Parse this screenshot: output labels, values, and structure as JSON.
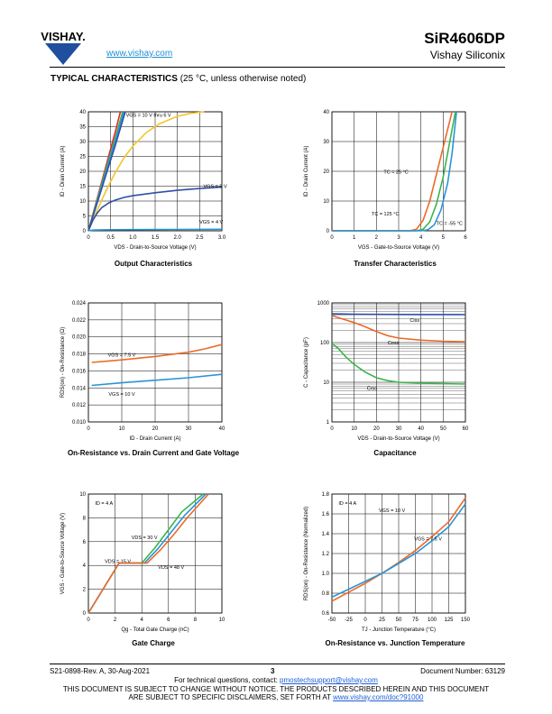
{
  "header": {
    "logo_text": "VISHAY.",
    "url": "www.vishay.com",
    "part_number": "SiR4606DP",
    "company": "Vishay Siliconix"
  },
  "section": {
    "title_bold": "TYPICAL CHARACTERISTICS",
    "title_rest": " (25 °C, unless otherwise noted)"
  },
  "footer": {
    "revision": "S21-0898-Rev. A, 30-Aug-2021",
    "page": "3",
    "doc_number": "Document Number: 63129",
    "questions": "For technical questions, contact: ",
    "email": "pmostechsupport@vishay.com",
    "notice1": "THIS DOCUMENT IS SUBJECT TO CHANGE WITHOUT NOTICE. THE PRODUCTS DESCRIBED HEREIN AND THIS DOCUMENT",
    "notice2": "ARE SUBJECT TO SPECIFIC DISCLAIMERS, SET FORTH AT ",
    "disclaimer_url": "www.vishay.com/doc?91000"
  },
  "colors": {
    "blue": "#2f4fa8",
    "yellow": "#f5c42c",
    "red": "#e2262b",
    "green": "#3ab54a",
    "orange": "#ec6a2a",
    "lightblue": "#2a94d6",
    "grid": "#000000"
  },
  "chart_data": [
    {
      "type": "line",
      "title": "Output Characteristics",
      "xlabel": "VDS - Drain-to-Source Voltage (V)",
      "ylabel": "ID - Drain Current (A)",
      "xlim": [
        0,
        3.0
      ],
      "ylim": [
        0,
        40
      ],
      "xticks": [
        "0",
        "0.5",
        "1.0",
        "1.5",
        "2.0",
        "2.5",
        "3.0"
      ],
      "yticks": [
        "0",
        "5",
        "10",
        "15",
        "20",
        "25",
        "30",
        "35",
        "40"
      ],
      "grid": true,
      "series": [
        {
          "name": "VGS = 10 V thru 6 V",
          "color": "#e2262b",
          "x": [
            0,
            0.2,
            0.4,
            0.6,
            0.72
          ],
          "y": [
            0,
            11,
            22,
            33,
            40
          ]
        },
        {
          "color": "#3ab54a",
          "x": [
            0,
            0.2,
            0.4,
            0.6,
            0.77
          ],
          "y": [
            0,
            10.5,
            21,
            31,
            40
          ]
        },
        {
          "color": "#2a94d6",
          "x": [
            0,
            0.2,
            0.4,
            0.6,
            0.8
          ],
          "y": [
            0,
            10,
            20,
            30,
            40
          ]
        },
        {
          "color": "#2f4fa8",
          "x": [
            0,
            0.2,
            0.4,
            0.6,
            0.83
          ],
          "y": [
            0,
            9.5,
            19,
            28.5,
            40
          ]
        },
        {
          "color": "#f5c42c",
          "x": [
            0,
            0.2,
            0.4,
            0.6,
            0.8,
            1.0,
            1.3,
            1.6,
            2.0,
            2.3,
            2.6
          ],
          "y": [
            0,
            7,
            13.5,
            19.5,
            24.5,
            28.5,
            33,
            36,
            38.5,
            39.5,
            40
          ]
        },
        {
          "name": "VGS = 5 V",
          "color": "#2f4fa8",
          "x": [
            0,
            0.1,
            0.2,
            0.3,
            0.45,
            0.6,
            0.8,
            1.0,
            1.5,
            2.0,
            2.5,
            3.0
          ],
          "y": [
            0,
            3.5,
            6,
            7.8,
            9.3,
            10.3,
            11.2,
            11.8,
            12.8,
            13.6,
            14.2,
            14.7
          ]
        },
        {
          "name": "VGS = 4 V",
          "color": "#2a94d6",
          "x": [
            0,
            0.1,
            0.5,
            1.0,
            2.0,
            3.0
          ],
          "y": [
            0,
            0.25,
            0.35,
            0.4,
            0.45,
            0.5
          ]
        }
      ]
    },
    {
      "type": "line",
      "title": "Transfer Characteristics",
      "xlabel": "VGS - Gate-to-Source Voltage (V)",
      "ylabel": "ID - Drain Current (A)",
      "xlim": [
        0,
        6
      ],
      "ylim": [
        0,
        40
      ],
      "xticks": [
        "0",
        "1",
        "2",
        "3",
        "4",
        "5",
        "6"
      ],
      "yticks": [
        "0",
        "10",
        "20",
        "30",
        "40"
      ],
      "grid": true,
      "series": [
        {
          "name": "TC = 25 °C",
          "color": "#3ab54a",
          "x": [
            0,
            3.8,
            4.1,
            4.4,
            4.7,
            5.0,
            5.3,
            5.55
          ],
          "y": [
            0,
            0,
            0.5,
            3,
            9,
            18,
            30,
            40
          ]
        },
        {
          "name": "TC = 125 °C",
          "color": "#ec6a2a",
          "x": [
            0,
            3.5,
            3.8,
            4.1,
            4.4,
            4.7,
            5.0,
            5.4
          ],
          "y": [
            0,
            0,
            0.5,
            3.5,
            10,
            19,
            28,
            40
          ]
        },
        {
          "name": "TC = -55 °C",
          "color": "#2a94d6",
          "x": [
            0,
            4.0,
            4.3,
            4.6,
            4.9,
            5.2,
            5.4,
            5.6
          ],
          "y": [
            0,
            0,
            0.3,
            2,
            7,
            16,
            26,
            40
          ]
        }
      ]
    },
    {
      "type": "line",
      "title": "On-Resistance vs. Drain Current and Gate Voltage",
      "xlabel": "ID - Drain Current (A)",
      "ylabel": "RDS(on) - On-Resistance (Ω)",
      "xlim": [
        0,
        40
      ],
      "ylim": [
        0.01,
        0.024
      ],
      "xticks": [
        "0",
        "10",
        "20",
        "30",
        "40"
      ],
      "yticks": [
        "0.010",
        "0.012",
        "0.014",
        "0.016",
        "0.018",
        "0.020",
        "0.022",
        "0.024"
      ],
      "grid": true,
      "series": [
        {
          "name": "VGS = 7.5 V",
          "color": "#ec6a2a",
          "x": [
            1,
            10,
            20,
            30,
            35,
            40
          ],
          "y": [
            0.017,
            0.0173,
            0.0177,
            0.0182,
            0.0186,
            0.0191
          ]
        },
        {
          "name": "VGS = 10 V",
          "color": "#2a94d6",
          "x": [
            1,
            10,
            20,
            30,
            40
          ],
          "y": [
            0.0143,
            0.0146,
            0.0149,
            0.0152,
            0.0156
          ]
        }
      ]
    },
    {
      "type": "line",
      "title": "Capacitance",
      "xlabel": "VDS - Drain-to-Source Voltage (V)",
      "ylabel": "C - Capacitance (pF)",
      "xlim": [
        0,
        60
      ],
      "ylim": [
        1,
        1000
      ],
      "yscale": "log",
      "xticks": [
        "0",
        "10",
        "20",
        "30",
        "40",
        "50",
        "60"
      ],
      "yticks": [
        "1",
        "10",
        "100",
        "1000"
      ],
      "grid": true,
      "series": [
        {
          "name": "Ciss",
          "color": "#2f4fa8",
          "x": [
            0,
            10,
            20,
            30,
            40,
            50,
            60
          ],
          "y": [
            530,
            520,
            515,
            512,
            510,
            508,
            506
          ]
        },
        {
          "name": "Coss",
          "color": "#ec6a2a",
          "x": [
            0,
            5,
            10,
            15,
            20,
            25,
            30,
            40,
            50,
            60
          ],
          "y": [
            480,
            390,
            320,
            250,
            190,
            150,
            130,
            115,
            108,
            105
          ]
        },
        {
          "name": "Crss",
          "color": "#3ab54a",
          "x": [
            0,
            3,
            6,
            10,
            15,
            20,
            25,
            30,
            40,
            50,
            60
          ],
          "y": [
            95,
            70,
            45,
            28,
            18,
            13,
            11,
            10,
            9.5,
            9.2,
            9
          ]
        }
      ]
    },
    {
      "type": "line",
      "title": "Gate Charge",
      "xlabel": "Qg - Total Gate Charge (nC)",
      "ylabel": "VGS - Gate-to-Source Voltage (V)",
      "xlim": [
        0,
        10
      ],
      "ylim": [
        0,
        10
      ],
      "xticks": [
        "0",
        "2",
        "4",
        "6",
        "8",
        "10"
      ],
      "yticks": [
        "0",
        "2",
        "4",
        "6",
        "8",
        "10"
      ],
      "annotation": "ID = 4 A",
      "grid": true,
      "series": [
        {
          "name": "VDS = 15 V",
          "color": "#3ab54a",
          "x": [
            0,
            2.3,
            4.0,
            5.0,
            6.0,
            7.0,
            8.6
          ],
          "y": [
            0,
            4.2,
            4.2,
            5.5,
            7.0,
            8.5,
            10
          ]
        },
        {
          "name": "VDS = 30 V",
          "color": "#2a94d6",
          "x": [
            0,
            2.3,
            4.2,
            5.2,
            6.2,
            7.2,
            8.8
          ],
          "y": [
            0,
            4.2,
            4.2,
            5.4,
            6.8,
            8.2,
            10
          ]
        },
        {
          "name": "VDS = 48 V",
          "color": "#ec6a2a",
          "x": [
            0,
            2.3,
            4.4,
            5.4,
            6.4,
            7.4,
            9.0
          ],
          "y": [
            0,
            4.2,
            4.2,
            5.3,
            6.6,
            8.0,
            10
          ]
        }
      ]
    },
    {
      "type": "line",
      "title": "On-Resistance vs. Junction Temperature",
      "xlabel": "TJ - Junction Temperature (°C)",
      "ylabel": "RDS(on) - On-Resistance (Normalized)",
      "xlim": [
        -50,
        150
      ],
      "ylim": [
        0.6,
        1.8
      ],
      "xticks": [
        "-50",
        "-25",
        "0",
        "25",
        "50",
        "75",
        "100",
        "125",
        "150"
      ],
      "yticks": [
        "0.6",
        "0.8",
        "1.0",
        "1.2",
        "1.4",
        "1.6",
        "1.8"
      ],
      "annotation": "ID = 4 A",
      "grid": true,
      "series": [
        {
          "name": "VGS = 10 V",
          "color": "#ec6a2a",
          "x": [
            -50,
            -25,
            0,
            25,
            50,
            75,
            100,
            125,
            150
          ],
          "y": [
            0.72,
            0.81,
            0.9,
            1.0,
            1.11,
            1.23,
            1.37,
            1.52,
            1.76
          ]
        },
        {
          "name": "VGS = 7.5 V",
          "color": "#2a94d6",
          "x": [
            -50,
            -25,
            0,
            25,
            50,
            75,
            100,
            125,
            150
          ],
          "y": [
            0.76,
            0.84,
            0.92,
            1.0,
            1.1,
            1.2,
            1.33,
            1.47,
            1.7
          ]
        }
      ]
    }
  ]
}
